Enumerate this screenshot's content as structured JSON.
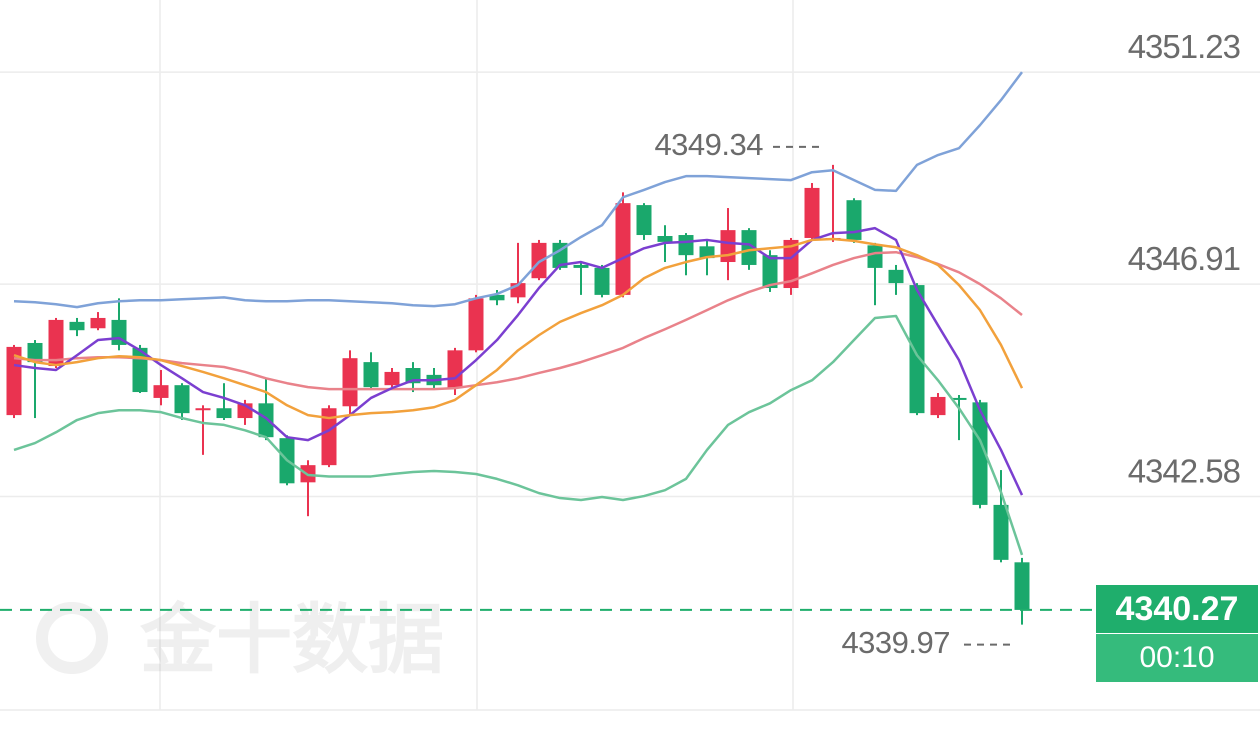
{
  "chart_data": {
    "type": "candlestick",
    "ylim": [
      4338.23,
      4352.7
    ],
    "yticks": [
      4351.23,
      4346.91,
      4342.58
    ],
    "grid": true,
    "up_color": "#ea3350",
    "down_color": "#1aa86c",
    "open": [
      4344.24,
      4345.71,
      4345.24,
      4346.14,
      4346.01,
      4346.18,
      4345.61,
      4344.59,
      4344.85,
      4344.34,
      4344.38,
      4344.18,
      4344.48,
      4343.77,
      4342.87,
      4343.22,
      4344.42,
      4345.32,
      4344.85,
      4345.2,
      4345.06,
      4344.79,
      4345.56,
      4346.69,
      4346.64,
      4347.03,
      4347.75,
      4347.3,
      4347.24,
      4346.69,
      4348.52,
      4347.89,
      4347.91,
      4347.68,
      4347.36,
      4348.01,
      4347.5,
      4346.83,
      4347.85,
      4347.81,
      4348.62,
      4347.7,
      4347.2,
      4346.89,
      4344.24,
      4344.59,
      4344.5,
      4342.41,
      4341.24
    ],
    "high": [
      4345.67,
      4345.77,
      4346.22,
      4346.22,
      4346.34,
      4346.62,
      4345.67,
      4345.16,
      4344.89,
      4344.44,
      4344.89,
      4344.55,
      4344.99,
      4343.83,
      4343.32,
      4344.44,
      4345.56,
      4345.52,
      4345.2,
      4345.32,
      4345.2,
      4345.61,
      4346.69,
      4346.79,
      4347.75,
      4347.81,
      4347.81,
      4347.36,
      4347.3,
      4348.78,
      4348.56,
      4348.11,
      4347.95,
      4347.81,
      4348.46,
      4348.05,
      4347.6,
      4347.85,
      4348.97,
      4349.34,
      4348.66,
      4347.75,
      4347.3,
      4346.93,
      4344.69,
      4344.65,
      4344.55,
      4343.12,
      4341.33
    ],
    "low": [
      4344.18,
      4344.18,
      4345.2,
      4345.85,
      4345.97,
      4345.56,
      4344.69,
      4344.44,
      4344.14,
      4343.43,
      4344.14,
      4344.04,
      4343.73,
      4342.81,
      4342.18,
      4343.18,
      4344.24,
      4344.75,
      4344.81,
      4344.71,
      4344.79,
      4344.65,
      4345.52,
      4346.48,
      4346.52,
      4346.99,
      4347.2,
      4346.69,
      4346.64,
      4346.64,
      4347.81,
      4347.36,
      4347.09,
      4347.09,
      4346.99,
      4347.2,
      4346.75,
      4346.69,
      4347.81,
      4347.77,
      4347.75,
      4346.48,
      4346.69,
      4344.24,
      4344.18,
      4343.73,
      4342.34,
      4341.24,
      4339.97
    ],
    "close": [
      4345.63,
      4345.32,
      4346.18,
      4345.97,
      4346.22,
      4345.67,
      4344.71,
      4344.85,
      4344.28,
      4344.38,
      4344.18,
      4344.48,
      4343.79,
      4342.85,
      4343.22,
      4344.38,
      4345.4,
      4344.81,
      4345.12,
      4344.89,
      4344.85,
      4345.56,
      4346.62,
      4346.58,
      4346.93,
      4347.75,
      4347.24,
      4347.24,
      4346.69,
      4348.56,
      4347.91,
      4347.77,
      4347.5,
      4347.44,
      4348.01,
      4347.3,
      4346.83,
      4347.81,
      4348.87,
      4347.85,
      4347.81,
      4347.24,
      4346.93,
      4344.28,
      4344.61,
      4344.55,
      4342.41,
      4341.29,
      4340.27
    ],
    "lines": [
      {
        "color": "#7fa2d8",
        "values": [
          4346.56,
          4346.54,
          4346.5,
          4346.44,
          4346.52,
          4346.56,
          4346.58,
          4346.58,
          4346.6,
          4346.62,
          4346.64,
          4346.58,
          4346.56,
          4346.56,
          4346.58,
          4346.58,
          4346.56,
          4346.54,
          4346.52,
          4346.48,
          4346.46,
          4346.5,
          4346.62,
          4346.71,
          4346.89,
          4347.36,
          4347.6,
          4347.87,
          4348.11,
          4348.68,
          4348.83,
          4348.99,
          4349.11,
          4349.11,
          4349.09,
          4349.07,
          4349.05,
          4349.03,
          4349.19,
          4349.23,
          4349.03,
          4348.83,
          4348.81,
          4349.34,
          4349.54,
          4349.68,
          4350.15,
          4350.66,
          4351.23
        ]
      },
      {
        "color": "#e9828a",
        "values": [
          4345.4,
          4345.36,
          4345.36,
          4345.4,
          4345.42,
          4345.42,
          4345.4,
          4345.36,
          4345.3,
          4345.26,
          4345.22,
          4345.12,
          4344.99,
          4344.89,
          4344.81,
          4344.77,
          4344.77,
          4344.77,
          4344.77,
          4344.77,
          4344.77,
          4344.79,
          4344.85,
          4344.91,
          4344.99,
          4345.1,
          4345.2,
          4345.32,
          4345.46,
          4345.61,
          4345.81,
          4345.99,
          4346.18,
          4346.38,
          4346.58,
          4346.75,
          4346.89,
          4346.97,
          4347.13,
          4347.3,
          4347.44,
          4347.54,
          4347.56,
          4347.46,
          4347.32,
          4347.15,
          4346.91,
          4346.62,
          4346.28
        ]
      },
      {
        "color": "#6cc49a",
        "values": [
          4343.53,
          4343.67,
          4343.89,
          4344.14,
          4344.28,
          4344.34,
          4344.34,
          4344.3,
          4344.18,
          4344.08,
          4344.04,
          4343.93,
          4343.79,
          4343.32,
          4343.02,
          4342.99,
          4342.99,
          4342.99,
          4343.04,
          4343.08,
          4343.1,
          4343.08,
          4343.04,
          4342.94,
          4342.81,
          4342.65,
          4342.55,
          4342.51,
          4342.57,
          4342.51,
          4342.59,
          4342.71,
          4342.94,
          4343.53,
          4344.04,
          4344.3,
          4344.48,
          4344.75,
          4344.95,
          4345.32,
          4345.77,
          4346.22,
          4346.26,
          4345.46,
          4344.95,
          4344.38,
          4343.73,
          4342.67,
          4341.39
        ]
      },
      {
        "color": "#7b3fd0",
        "values": [
          4345.26,
          4345.2,
          4345.16,
          4345.46,
          4345.77,
          4345.81,
          4345.56,
          4345.26,
          4344.99,
          4344.71,
          4344.59,
          4344.44,
          4344.18,
          4343.79,
          4343.73,
          4343.93,
          4344.24,
          4344.59,
          4344.79,
          4344.95,
          4344.95,
          4344.99,
          4345.36,
          4345.77,
          4346.28,
          4346.83,
          4347.3,
          4347.36,
          4347.24,
          4347.44,
          4347.64,
          4347.75,
          4347.77,
          4347.81,
          4347.75,
          4347.72,
          4347.44,
          4347.44,
          4347.81,
          4347.95,
          4347.97,
          4348.05,
          4347.81,
          4346.79,
          4346.07,
          4345.36,
          4344.34,
          4343.53,
          4342.61
        ]
      },
      {
        "color": "#f2a13c",
        "values": [
          4345.46,
          4345.32,
          4345.26,
          4345.32,
          4345.4,
          4345.44,
          4345.42,
          4345.36,
          4345.24,
          4345.12,
          4344.99,
          4344.85,
          4344.71,
          4344.44,
          4344.24,
          4344.18,
          4344.24,
          4344.28,
          4344.3,
          4344.34,
          4344.4,
          4344.55,
          4344.85,
          4345.16,
          4345.56,
          4345.87,
          4346.14,
          4346.32,
          4346.48,
          4346.69,
          4347.03,
          4347.24,
          4347.36,
          4347.46,
          4347.5,
          4347.6,
          4347.64,
          4347.68,
          4347.81,
          4347.83,
          4347.79,
          4347.72,
          4347.66,
          4347.5,
          4347.3,
          4346.89,
          4346.38,
          4345.67,
          4344.79
        ]
      }
    ],
    "countdown": "00:10",
    "watermark": "金十数据"
  }
}
